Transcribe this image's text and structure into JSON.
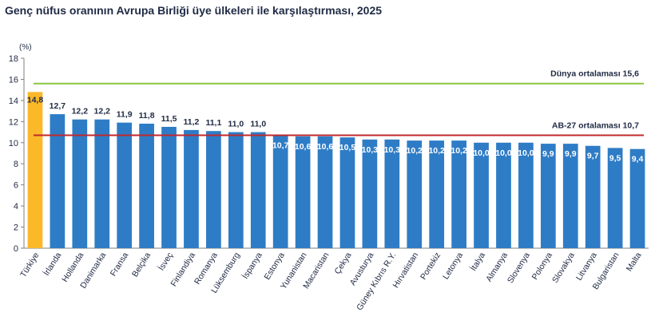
{
  "chart_data": {
    "type": "bar",
    "title": "Genç nüfus oranının Avrupa Birliği üye ülkeleri ile karşılaştırması, 2025",
    "ylabel": "(%)",
    "xlabel": "",
    "ylim": [
      0,
      18
    ],
    "yticks": [
      "0",
      "2",
      "4",
      "6",
      "8",
      "10",
      "12",
      "14",
      "16",
      "18"
    ],
    "categories": [
      "Türkiye",
      "İrlanda",
      "Hollanda",
      "Danimarka",
      "Fransa",
      "Belçika",
      "İsveç",
      "Finlandiya",
      "Romanya",
      "Lüksemburg",
      "İspanya",
      "Estonya",
      "Yunanistan",
      "Macaristan",
      "Çekya",
      "Avusturya",
      "Güney Kıbrıs R.Y.",
      "Hırvatistan",
      "Portekiz",
      "Letonya",
      "İtalya",
      "Almanya",
      "Slovenya",
      "Polonya",
      "Slovakya",
      "Litvanya",
      "Bulgaristan",
      "Malta"
    ],
    "values": [
      14.8,
      12.7,
      12.2,
      12.2,
      11.9,
      11.8,
      11.5,
      11.2,
      11.1,
      11.0,
      11.0,
      10.7,
      10.6,
      10.6,
      10.5,
      10.3,
      10.3,
      10.2,
      10.2,
      10.2,
      10.0,
      10.0,
      10.0,
      9.9,
      9.9,
      9.7,
      9.5,
      9.4
    ],
    "labels": [
      "14,8",
      "12,7",
      "12,2",
      "12,2",
      "11,9",
      "11,8",
      "11,5",
      "11,2",
      "11,1",
      "11,0",
      "11,0",
      "10,7",
      "10,6",
      "10,6",
      "10,5",
      "10,3",
      "10,3",
      "10,2",
      "10,2",
      "10,2",
      "10,0",
      "10,0",
      "10,0",
      "9,9",
      "9,9",
      "9,7",
      "9,5",
      "9,4"
    ],
    "highlight_category": "Türkiye",
    "reference_lines": [
      {
        "label": "Dünya ortalaması 15,6",
        "value": 15.6,
        "color": "#8cc63f"
      },
      {
        "label": "AB-27 ortalaması  10,7",
        "value": 10.7,
        "color": "#c0282d"
      }
    ],
    "colors": {
      "bar": "#2e7cc6",
      "highlight": "#fbb829",
      "axis": "#7f7f7f",
      "text": "#1f2a44"
    },
    "grid": false,
    "legend": "none"
  }
}
